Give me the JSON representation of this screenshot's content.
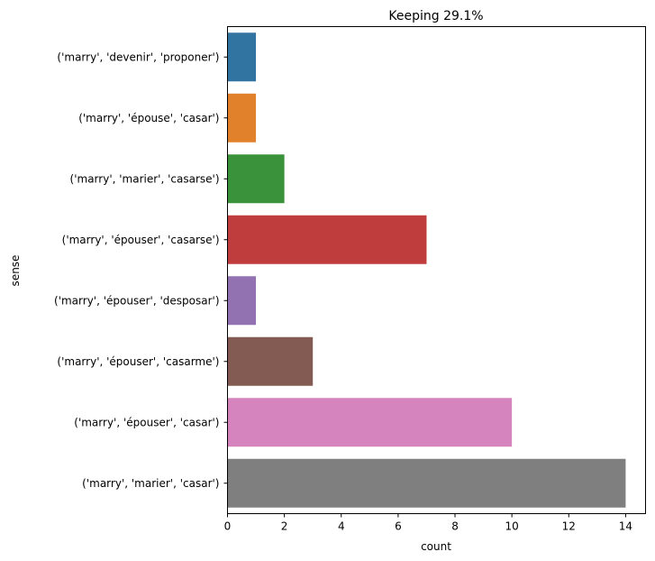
{
  "chart_data": {
    "type": "bar",
    "orientation": "horizontal",
    "title": "Keeping 29.1%",
    "xlabel": "count",
    "ylabel": "sense",
    "xlim": [
      0,
      14.7
    ],
    "xticks": [
      0,
      2,
      4,
      6,
      8,
      10,
      12,
      14
    ],
    "grid": false,
    "legend": "none",
    "categories": [
      "('marry', 'devenir', 'proponer')",
      "('marry', 'épouse', 'casar')",
      "('marry', 'marier', 'casarse')",
      "('marry', 'épouser', 'casarse')",
      "('marry', 'épouser', 'desposar')",
      "('marry', 'épouser', 'casarme')",
      "('marry', 'épouser', 'casar')",
      "('marry', 'marier', 'casar')"
    ],
    "values": [
      1,
      1,
      2,
      7,
      1,
      3,
      10,
      14
    ],
    "colors": [
      "#3274a1",
      "#e1812c",
      "#3a923a",
      "#c03d3e",
      "#9372b2",
      "#845b53",
      "#d684bd",
      "#7f7f7f"
    ]
  }
}
